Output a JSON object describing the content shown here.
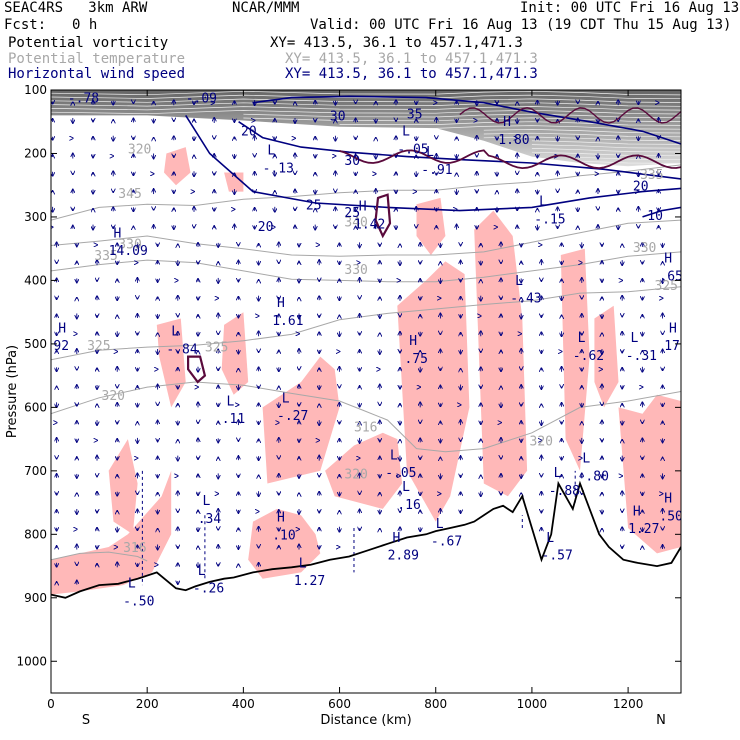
{
  "header": {
    "model": "SEAC4RS   3km ARW",
    "org": "NCAR/MMM",
    "init": "Init: 00 UTC Fri 16 Aug 13",
    "fcst_label": "Fcst:",
    "fcst_value": "0 h",
    "valid": "Valid: 00 UTC Fri 16 Aug 13 (19 CDT Thu 15 Aug 13)",
    "fields": [
      {
        "name": "Potential vorticity",
        "xy": "XY= 413.5, 36.1 to 457.1,471.3",
        "color": "#000000"
      },
      {
        "name": "Potential temperature",
        "xy": "XY= 413.5, 36.1 to 457.1,471.3",
        "color": "#a8a8a8"
      },
      {
        "name": "Horizontal wind speed",
        "xy": "XY= 413.5, 36.1 to 457.1,471.3",
        "color": "#000080"
      }
    ]
  },
  "chart_data": {
    "type": "contour",
    "xlabel": "Distance (km)",
    "ylabel": "Pressure (hPa)",
    "xlim": [
      0,
      1310
    ],
    "ylim": [
      1050,
      100
    ],
    "x_ticks": [
      0,
      200,
      400,
      600,
      800,
      1000,
      1200
    ],
    "y_ticks": [
      100,
      200,
      300,
      400,
      500,
      600,
      700,
      800,
      900,
      1000
    ],
    "end_labels": {
      "left": "S",
      "right": "N"
    },
    "colors": {
      "pv_shading": "#ffb8b8",
      "pv_contour": "#5a0a3c",
      "theta": "#a8a8a8",
      "wind": "#000080",
      "terrain": "#000000",
      "upper_shading": "#7a7a7a"
    },
    "terrain": {
      "x": [
        0,
        30,
        60,
        100,
        140,
        180,
        220,
        260,
        280,
        300,
        330,
        360,
        380,
        420,
        460,
        500,
        540,
        580,
        620,
        660,
        700,
        740,
        780,
        800,
        830,
        860,
        880,
        900,
        920,
        940,
        960,
        980,
        1000,
        1020,
        1040,
        1055,
        1070,
        1085,
        1100,
        1120,
        1140,
        1160,
        1190,
        1220,
        1260,
        1290,
        1310
      ],
      "p": [
        895,
        900,
        890,
        880,
        878,
        870,
        860,
        885,
        888,
        882,
        875,
        870,
        868,
        860,
        855,
        852,
        848,
        840,
        835,
        825,
        815,
        805,
        800,
        795,
        790,
        785,
        780,
        770,
        760,
        755,
        765,
        740,
        790,
        840,
        800,
        720,
        740,
        760,
        720,
        760,
        800,
        820,
        840,
        845,
        850,
        845,
        820
      ]
    },
    "theta_contours": [
      {
        "value": "345",
        "points": [
          [
            0,
            305
          ],
          [
            100,
            285
          ],
          [
            200,
            280
          ],
          [
            300,
            282
          ],
          [
            400,
            272
          ],
          [
            500,
            268
          ],
          [
            600,
            262
          ],
          [
            700,
            258
          ],
          [
            800,
            258
          ],
          [
            900,
            250
          ],
          [
            1000,
            245
          ],
          [
            1100,
            235
          ],
          [
            1200,
            228
          ],
          [
            1310,
            218
          ]
        ]
      },
      {
        "value": "335",
        "points": [
          [
            0,
            345
          ],
          [
            100,
            338
          ],
          [
            200,
            330
          ],
          [
            300,
            342
          ],
          [
            400,
            350
          ],
          [
            500,
            360
          ],
          [
            600,
            362
          ],
          [
            700,
            360
          ],
          [
            800,
            360
          ],
          [
            900,
            355
          ],
          [
            1000,
            340
          ],
          [
            1100,
            325
          ],
          [
            1200,
            310
          ],
          [
            1310,
            305
          ]
        ]
      },
      {
        "value": "330",
        "points": [
          [
            0,
            385
          ],
          [
            100,
            375
          ],
          [
            200,
            368
          ],
          [
            300,
            372
          ],
          [
            400,
            385
          ],
          [
            500,
            398
          ],
          [
            600,
            400
          ],
          [
            700,
            402
          ],
          [
            800,
            402
          ],
          [
            900,
            395
          ],
          [
            1000,
            385
          ],
          [
            1100,
            375
          ],
          [
            1200,
            362
          ],
          [
            1310,
            355
          ]
        ]
      },
      {
        "value": "325",
        "points": [
          [
            0,
            525
          ],
          [
            100,
            510
          ],
          [
            200,
            505
          ],
          [
            300,
            502
          ],
          [
            400,
            495
          ],
          [
            500,
            485
          ],
          [
            600,
            462
          ],
          [
            700,
            452
          ],
          [
            800,
            445
          ],
          [
            900,
            438
          ],
          [
            1000,
            432
          ],
          [
            1100,
            420
          ],
          [
            1200,
            418
          ],
          [
            1310,
            410
          ]
        ]
      },
      {
        "value": "320",
        "points": [
          [
            0,
            610
          ],
          [
            100,
            585
          ],
          [
            200,
            568
          ],
          [
            300,
            560
          ],
          [
            400,
            565
          ],
          [
            500,
            578
          ],
          [
            600,
            590
          ],
          [
            650,
            605
          ],
          [
            700,
            620
          ],
          [
            760,
            665
          ],
          [
            820,
            670
          ],
          [
            900,
            665
          ],
          [
            1000,
            640
          ],
          [
            1100,
            600
          ],
          [
            1200,
            590
          ],
          [
            1310,
            575
          ]
        ]
      },
      {
        "value": "316",
        "points": [
          [
            0,
            840
          ],
          [
            60,
            830
          ],
          [
            120,
            828
          ],
          [
            180,
            835
          ],
          [
            200,
            842
          ]
        ]
      }
    ],
    "theta_labels": [
      {
        "text": "320",
        "x": 160,
        "y": 200
      },
      {
        "text": "345",
        "x": 140,
        "y": 270
      },
      {
        "text": "335",
        "x": 1225,
        "y": 240
      },
      {
        "text": "340",
        "x": 610,
        "y": 315
      },
      {
        "text": "330",
        "x": 140,
        "y": 350
      },
      {
        "text": "335",
        "x": 90,
        "y": 368
      },
      {
        "text": "330",
        "x": 610,
        "y": 390
      },
      {
        "text": "330",
        "x": 1210,
        "y": 355
      },
      {
        "text": "325",
        "x": 1255,
        "y": 415
      },
      {
        "text": "325",
        "x": 75,
        "y": 510
      },
      {
        "text": "325",
        "x": 320,
        "y": 512
      },
      {
        "text": "320",
        "x": 105,
        "y": 588
      },
      {
        "text": "316",
        "x": 630,
        "y": 638
      },
      {
        "text": "320",
        "x": 995,
        "y": 660
      },
      {
        "text": "320",
        "x": 610,
        "y": 712
      },
      {
        "text": "316",
        "x": 150,
        "y": 828
      }
    ],
    "wind_contours": [
      {
        "value": "30",
        "points": [
          [
            420,
            120
          ],
          [
            500,
            112
          ],
          [
            620,
            110
          ],
          [
            780,
            112
          ],
          [
            900,
            120
          ],
          [
            1000,
            135
          ],
          [
            1120,
            150
          ],
          [
            1230,
            165
          ],
          [
            1310,
            185
          ]
        ]
      },
      {
        "value": "25",
        "points": [
          [
            390,
            150
          ],
          [
            440,
            175
          ],
          [
            520,
            190
          ],
          [
            620,
            198
          ],
          [
            740,
            205
          ],
          [
            860,
            210
          ],
          [
            1000,
            215
          ],
          [
            1150,
            225
          ],
          [
            1310,
            240
          ]
        ]
      },
      {
        "value": "20",
        "points": [
          [
            280,
            140
          ],
          [
            330,
            200
          ],
          [
            420,
            260
          ],
          [
            550,
            278
          ],
          [
            700,
            285
          ],
          [
            850,
            290
          ],
          [
            1000,
            285
          ],
          [
            1120,
            270
          ],
          [
            1230,
            260
          ],
          [
            1310,
            255
          ]
        ]
      },
      {
        "value": "10",
        "points": [
          [
            1230,
            300
          ],
          [
            1270,
            290
          ],
          [
            1310,
            285
          ]
        ]
      }
    ],
    "wind_labels": [
      {
        "text": "30",
        "x": 580,
        "y": 148
      },
      {
        "text": "35",
        "x": 740,
        "y": 145
      },
      {
        "text": "20",
        "x": 395,
        "y": 172
      },
      {
        "text": "30",
        "x": 610,
        "y": 218
      },
      {
        "text": "25",
        "x": 1310,
        "y": 200
      },
      {
        "text": "20",
        "x": 1210,
        "y": 258
      },
      {
        "text": "10",
        "x": 1240,
        "y": 305
      },
      {
        "text": "25",
        "x": 530,
        "y": 288
      },
      {
        "text": "25",
        "x": 610,
        "y": 300
      },
      {
        "text": "20",
        "x": 430,
        "y": 322
      }
    ],
    "pv_extrema": [
      {
        "type": "L",
        "value": "-.78",
        "x": 35,
        "y": 120
      },
      {
        "type": "L",
        "value": "-.09",
        "x": 280,
        "y": 120
      },
      {
        "type": "L",
        "value": "-.13",
        "x": 440,
        "y": 230
      },
      {
        "type": "H",
        "value": "1.80",
        "x": 930,
        "y": 185
      },
      {
        "type": "L",
        "value": "-.05",
        "x": 720,
        "y": 200
      },
      {
        "type": "L",
        "value": "-.91",
        "x": 770,
        "y": 232
      },
      {
        "type": "H",
        "value": "1.42",
        "x": 630,
        "y": 318
      },
      {
        "type": "L",
        "value": "-.15",
        "x": 1005,
        "y": 310
      },
      {
        "type": "H",
        "value": "14.09",
        "x": 120,
        "y": 360
      },
      {
        "type": "L",
        "value": "-.43",
        "x": 955,
        "y": 435
      },
      {
        "type": "H",
        "value": ".65",
        "x": 1265,
        "y": 400
      },
      {
        "type": "H",
        "value": "1.61",
        "x": 460,
        "y": 470
      },
      {
        "type": "H",
        "value": "92",
        "x": 5,
        "y": 510
      },
      {
        "type": "L",
        "value": "-.84",
        "x": 240,
        "y": 515
      },
      {
        "type": "H",
        "value": ".75",
        "x": 735,
        "y": 530
      },
      {
        "type": "L",
        "value": "-.62",
        "x": 1085,
        "y": 525
      },
      {
        "type": "L",
        "value": "-.31",
        "x": 1195,
        "y": 525
      },
      {
        "type": "H",
        "value": "17",
        "x": 1275,
        "y": 510
      },
      {
        "type": "L",
        "value": ".11",
        "x": 355,
        "y": 625
      },
      {
        "type": "L",
        "value": "-.27",
        "x": 470,
        "y": 620
      },
      {
        "type": "L",
        "value": "-.05",
        "x": 695,
        "y": 710
      },
      {
        "type": "L",
        "value": ".16",
        "x": 720,
        "y": 760
      },
      {
        "type": "L",
        "value": "-.88",
        "x": 1035,
        "y": 738
      },
      {
        "type": "L",
        "value": "-.80",
        "x": 1095,
        "y": 715
      },
      {
        "type": "L",
        "value": ".34",
        "x": 305,
        "y": 782
      },
      {
        "type": "H",
        "value": ".10",
        "x": 460,
        "y": 808
      },
      {
        "type": "L",
        "value": "-.67",
        "x": 790,
        "y": 818
      },
      {
        "type": "H",
        "value": "2.89",
        "x": 700,
        "y": 840
      },
      {
        "type": "L",
        "value": "-.57",
        "x": 1020,
        "y": 840
      },
      {
        "type": "H",
        "value": "1.27",
        "x": 1200,
        "y": 798
      },
      {
        "type": "H",
        "value": ".50",
        "x": 1265,
        "y": 778
      },
      {
        "type": "L",
        "value": "1.27",
        "x": 505,
        "y": 880
      },
      {
        "type": "L",
        "value": "-.26",
        "x": 295,
        "y": 892
      },
      {
        "type": "L",
        "value": "-.50",
        "x": 150,
        "y": 912
      }
    ],
    "pv_shading_regions": [
      {
        "x": [
          0,
          60,
          120,
          160,
          230,
          250,
          250,
          210,
          150,
          60,
          0
        ],
        "p": [
          840,
          830,
          820,
          800,
          740,
          700,
          800,
          860,
          880,
          890,
          895
        ]
      },
      {
        "x": [
          120,
          160,
          180,
          170,
          130
        ],
        "p": [
          700,
          650,
          720,
          800,
          780
        ]
      },
      {
        "x": [
          220,
          270,
          280,
          250,
          225
        ],
        "p": [
          470,
          460,
          560,
          600,
          520
        ]
      },
      {
        "x": [
          360,
          400,
          410,
          380,
          355
        ],
        "p": [
          470,
          450,
          560,
          580,
          540
        ]
      },
      {
        "x": [
          420,
          470,
          520,
          550,
          560,
          520,
          440,
          410
        ],
        "p": [
          780,
          760,
          770,
          800,
          830,
          860,
          870,
          840
        ]
      },
      {
        "x": [
          440,
          520,
          560,
          590,
          600,
          560,
          450
        ],
        "p": [
          600,
          560,
          520,
          540,
          600,
          700,
          720
        ]
      },
      {
        "x": [
          570,
          630,
          690,
          720,
          730,
          690,
          640,
          590
        ],
        "p": [
          700,
          660,
          640,
          650,
          720,
          760,
          750,
          740
        ]
      },
      {
        "x": [
          720,
          780,
          820,
          860,
          870,
          830,
          800,
          740
        ],
        "p": [
          440,
          400,
          370,
          390,
          600,
          740,
          780,
          700
        ]
      },
      {
        "x": [
          880,
          920,
          960,
          980,
          990,
          950,
          900
        ],
        "p": [
          320,
          290,
          330,
          460,
          700,
          740,
          720
        ]
      },
      {
        "x": [
          1060,
          1110,
          1120,
          1100,
          1070
        ],
        "p": [
          360,
          350,
          520,
          700,
          650
        ]
      },
      {
        "x": [
          1180,
          1230,
          1260,
          1310,
          1310,
          1260,
          1200
        ],
        "p": [
          600,
          610,
          580,
          590,
          820,
          830,
          790
        ]
      },
      {
        "x": [
          1130,
          1170,
          1180,
          1150,
          1130
        ],
        "p": [
          460,
          440,
          560,
          600,
          560
        ]
      },
      {
        "x": [
          240,
          280,
          290,
          260,
          235
        ],
        "p": [
          200,
          190,
          230,
          250,
          230
        ]
      },
      {
        "x": [
          760,
          810,
          820,
          790,
          760
        ],
        "p": [
          280,
          270,
          330,
          360,
          330
        ]
      },
      {
        "x": [
          360,
          400,
          400,
          370
        ],
        "p": [
          230,
          230,
          260,
          260
        ]
      }
    ],
    "pv_contour_loops": [
      {
        "x": [
          285,
          310,
          320,
          305,
          285
        ],
        "p": [
          520,
          520,
          550,
          560,
          540
        ]
      },
      {
        "x": [
          680,
          700,
          705,
          690,
          675
        ],
        "p": [
          270,
          265,
          310,
          330,
          305
        ]
      }
    ],
    "upper_band_top_p": 100,
    "upper_band_bottom": {
      "x": [
        0,
        200,
        400,
        600,
        800,
        900,
        1000,
        1100,
        1200,
        1310
      ],
      "p": [
        100,
        100,
        108,
        118,
        120,
        140,
        165,
        175,
        180,
        175
      ]
    }
  }
}
